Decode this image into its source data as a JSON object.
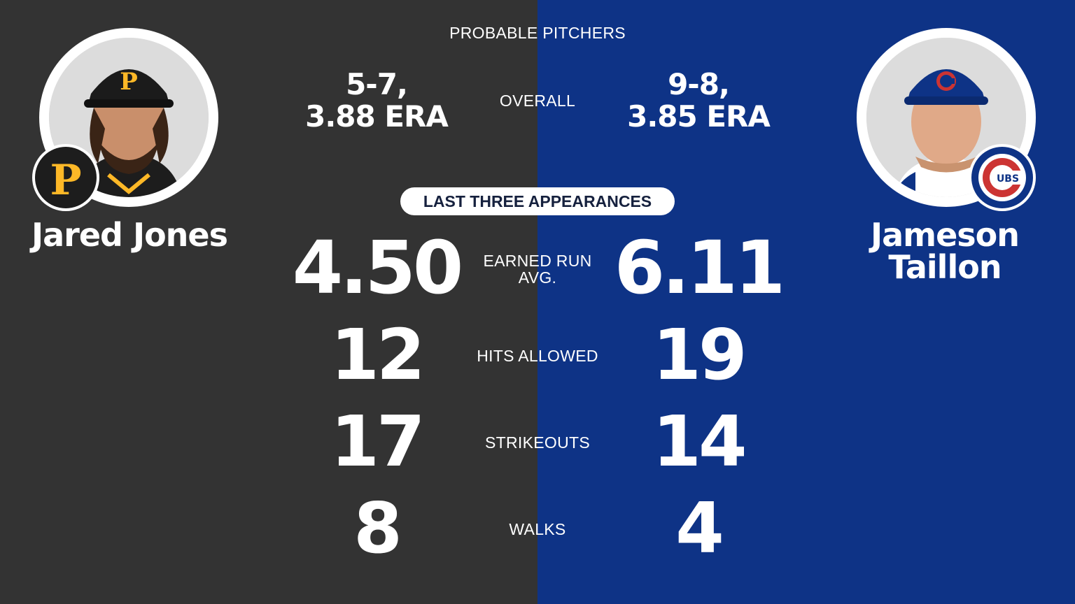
{
  "header": {
    "title": "PROBABLE PITCHERS"
  },
  "section": {
    "last_three_label": "LAST THREE APPEARANCES"
  },
  "labels": {
    "overall": "OVERALL",
    "era": "EARNED RUN AVG.",
    "hits": "HITS ALLOWED",
    "strikeouts": "STRIKEOUTS",
    "walks": "WALKS"
  },
  "away": {
    "name": "Jared Jones",
    "team_logo": "pirates-p-logo",
    "overall_line1": "5-7,",
    "overall_line2": "3.88 ERA",
    "era": "4.50",
    "hits": "12",
    "strikeouts": "17",
    "walks": "8",
    "color": "#333333"
  },
  "home": {
    "name_line1": "Jameson",
    "name_line2": "Taillon",
    "team_logo": "cubs-logo",
    "overall_line1": "9-8,",
    "overall_line2": "3.85 ERA",
    "era": "6.11",
    "hits": "19",
    "strikeouts": "14",
    "walks": "4",
    "color": "#0e3386"
  }
}
